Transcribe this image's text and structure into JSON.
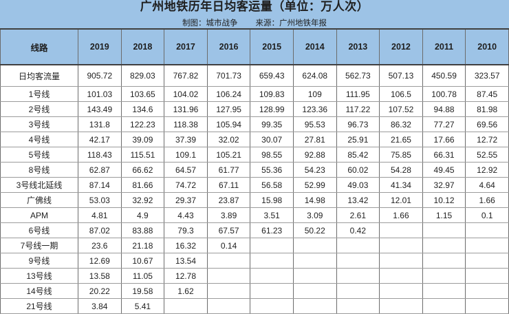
{
  "banner": {
    "title": "广州地铁历年日均客运量（单位：万人次）",
    "credit": "制图：城市战争",
    "source": "来源：广州地铁年报"
  },
  "colors": {
    "banner_bg": "#9DC3E6",
    "header_bg": "#9DC3E6",
    "grid_line_vertical": "#6b6b6b",
    "grid_line_horizontal": "#9b9b9b",
    "header_heavy_border": "#404040",
    "text": "#1f1f1f"
  },
  "chart_data": {
    "type": "table",
    "title": "广州地铁历年日均客运量（单位：万人次）",
    "credit": "制图：城市战争",
    "source": "来源：广州地铁年报",
    "columns": [
      "线路",
      "2019",
      "2018",
      "2017",
      "2016",
      "2015",
      "2014",
      "2013",
      "2012",
      "2011",
      "2010"
    ],
    "rows": [
      {
        "label": "日均客流量",
        "values": [
          "905.72",
          "829.03",
          "767.82",
          "701.73",
          "659.43",
          "624.08",
          "562.73",
          "507.13",
          "450.59",
          "323.57"
        ]
      },
      {
        "label": "1号线",
        "values": [
          "101.03",
          "103.65",
          "104.02",
          "106.24",
          "109.83",
          "109",
          "111.95",
          "106.5",
          "100.78",
          "87.45"
        ]
      },
      {
        "label": "2号线",
        "values": [
          "143.49",
          "134.6",
          "131.96",
          "127.95",
          "128.99",
          "123.36",
          "117.22",
          "107.52",
          "94.88",
          "81.98"
        ]
      },
      {
        "label": "3号线",
        "values": [
          "131.8",
          "122.23",
          "118.38",
          "105.94",
          "99.35",
          "95.53",
          "96.73",
          "86.32",
          "77.27",
          "69.56"
        ]
      },
      {
        "label": "4号线",
        "values": [
          "42.17",
          "39.09",
          "37.39",
          "32.02",
          "30.07",
          "27.81",
          "25.91",
          "21.65",
          "17.66",
          "12.72"
        ]
      },
      {
        "label": "5号线",
        "values": [
          "118.43",
          "115.51",
          "109.1",
          "105.21",
          "98.55",
          "92.88",
          "85.42",
          "75.85",
          "66.31",
          "52.55"
        ]
      },
      {
        "label": "8号线",
        "values": [
          "62.87",
          "66.62",
          "64.57",
          "61.77",
          "55.36",
          "54.23",
          "60.02",
          "54.28",
          "49.45",
          "12.92"
        ]
      },
      {
        "label": "3号线北延线",
        "values": [
          "87.14",
          "81.66",
          "74.72",
          "67.11",
          "56.58",
          "52.99",
          "49.03",
          "41.34",
          "32.97",
          "4.64"
        ]
      },
      {
        "label": "广佛线",
        "values": [
          "53.03",
          "32.92",
          "29.37",
          "23.87",
          "15.98",
          "14.98",
          "13.42",
          "12.01",
          "10.12",
          "1.66"
        ]
      },
      {
        "label": "APM",
        "values": [
          "4.81",
          "4.9",
          "4.43",
          "3.89",
          "3.51",
          "3.09",
          "2.61",
          "1.66",
          "1.15",
          "0.1"
        ]
      },
      {
        "label": "6号线",
        "values": [
          "87.02",
          "83.88",
          "79.3",
          "67.57",
          "61.23",
          "50.22",
          "0.42",
          "",
          "",
          ""
        ]
      },
      {
        "label": "7号线一期",
        "values": [
          "23.6",
          "21.18",
          "16.32",
          "0.14",
          "",
          "",
          "",
          "",
          "",
          ""
        ]
      },
      {
        "label": "9号线",
        "values": [
          "12.69",
          "10.67",
          "13.54",
          "",
          "",
          "",
          "",
          "",
          "",
          ""
        ]
      },
      {
        "label": "13号线",
        "values": [
          "13.58",
          "11.05",
          "12.78",
          "",
          "",
          "",
          "",
          "",
          "",
          ""
        ]
      },
      {
        "label": "14号线",
        "values": [
          "20.22",
          "19.58",
          "1.62",
          "",
          "",
          "",
          "",
          "",
          "",
          ""
        ]
      },
      {
        "label": "21号线",
        "values": [
          "3.84",
          "5.41",
          "",
          "",
          "",
          "",
          "",
          "",
          "",
          ""
        ]
      }
    ]
  }
}
